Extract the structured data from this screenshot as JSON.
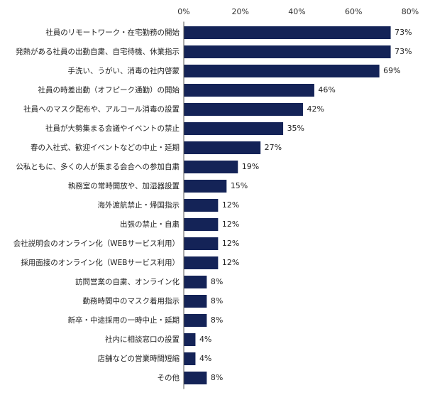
{
  "chart_data": {
    "type": "bar",
    "orientation": "horizontal",
    "categories": [
      "社員のリモートワーク・在宅勤務の開始",
      "発熱がある社員の出勤自粛、自宅待機、休業指示",
      "手洗い、うがい、消毒の社内啓蒙",
      "社員の時差出勤（オフピーク通勤）の開始",
      "社員へのマスク配布や、アルコール消毒の設置",
      "社員が大勢集まる会議やイベントの禁止",
      "春の入社式、歓迎イベントなどの中止・延期",
      "公私ともに、多くの人が集まる会合への参加自粛",
      "執務室の常時開放や、加湿器設置",
      "海外渡航禁止・帰国指示",
      "出張の禁止・自粛",
      "会社説明会のオンライン化（WEBサービス利用）",
      "採用面接のオンライン化（WEBサービス利用）",
      "訪問営業の自粛、オンライン化",
      "勤務時間中のマスク着用指示",
      "新卒・中途採用の一時中止・延期",
      "社内に相談窓口の設置",
      "店舗などの営業時間短縮",
      "その他"
    ],
    "values": [
      73,
      73,
      69,
      46,
      42,
      35,
      27,
      19,
      15,
      12,
      12,
      12,
      12,
      8,
      8,
      8,
      4,
      4,
      8
    ],
    "value_labels": [
      "73%",
      "73%",
      "69%",
      "46%",
      "42%",
      "35%",
      "27%",
      "19%",
      "15%",
      "12%",
      "12%",
      "12%",
      "12%",
      "8%",
      "8%",
      "8%",
      "4%",
      "4%",
      "8%"
    ],
    "x_ticks": [
      "0%",
      "20%",
      "40%",
      "60%",
      "80%"
    ],
    "xlim": [
      0,
      80
    ],
    "grid": false,
    "bar_color": "#142357"
  }
}
